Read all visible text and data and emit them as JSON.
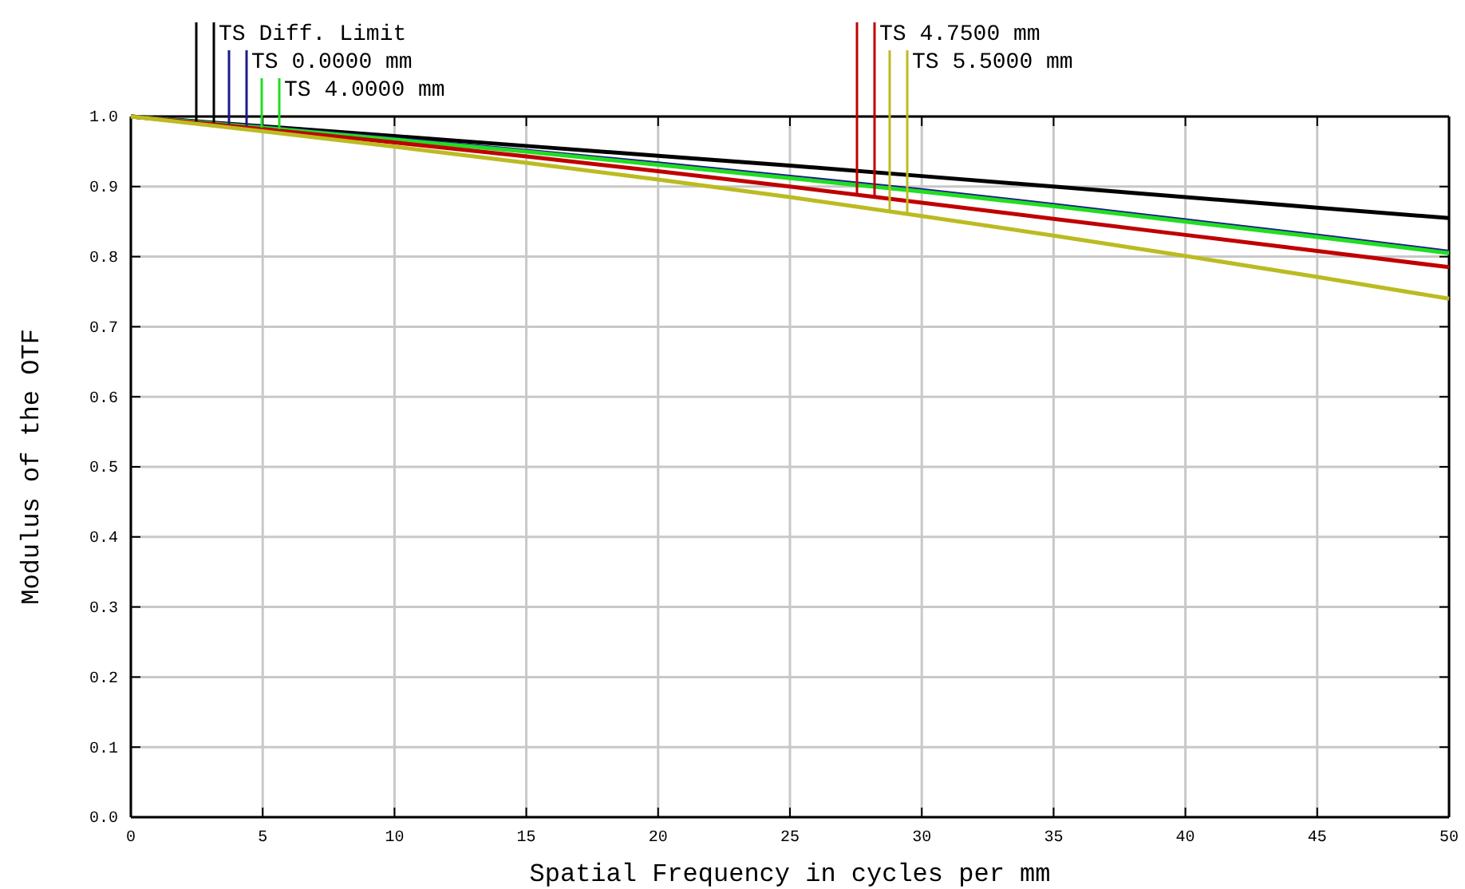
{
  "chart_data": {
    "type": "line",
    "xlabel": "Spatial Frequency in cycles per mm",
    "ylabel": "Modulus of the OTF",
    "x": [
      0,
      5,
      10,
      15,
      20,
      25,
      30,
      35,
      40,
      45,
      50
    ],
    "xlim": [
      0,
      50
    ],
    "xticks": [
      0,
      5,
      10,
      15,
      20,
      25,
      30,
      35,
      40,
      45,
      50
    ],
    "ylim": [
      0,
      1
    ],
    "yticks": [
      {
        "value": 0,
        "label": "0.0"
      },
      {
        "value": 0.1,
        "label": "0.1"
      },
      {
        "value": 0.2,
        "label": "0.2"
      },
      {
        "value": 0.3,
        "label": "0.3"
      },
      {
        "value": 0.4,
        "label": "0.4"
      },
      {
        "value": 0.5,
        "label": "0.5"
      },
      {
        "value": 0.6,
        "label": "0.6"
      },
      {
        "value": 0.7,
        "label": "0.7"
      },
      {
        "value": 0.8,
        "label": "0.8"
      },
      {
        "value": 0.9,
        "label": "0.9"
      },
      {
        "value": 1,
        "label": "1.0"
      }
    ],
    "grid": true,
    "legend": "top",
    "marker": "none",
    "line_style": "solid",
    "series": [
      {
        "name": "TS Diff. Limit",
        "color": "#000000",
        "values": [
          1,
          0.986,
          0.972,
          0.958,
          0.944,
          0.93,
          0.915,
          0.9,
          0.885,
          0.87,
          0.855
        ]
      },
      {
        "name": "TS 0.0000 mm",
        "color": "#1a1a8c",
        "values": [
          1,
          0.985,
          0.968,
          0.951,
          0.933,
          0.914,
          0.895,
          0.874,
          0.852,
          0.83,
          0.807
        ]
      },
      {
        "name": "TS 4.0000 mm",
        "color": "#22dd22",
        "values": [
          1,
          0.984,
          0.967,
          0.95,
          0.931,
          0.912,
          0.893,
          0.872,
          0.85,
          0.828,
          0.805
        ]
      },
      {
        "name": "TS 4.7500 mm",
        "color": "#c00000",
        "values": [
          1,
          0.982,
          0.963,
          0.943,
          0.922,
          0.9,
          0.877,
          0.854,
          0.831,
          0.808,
          0.785
        ]
      },
      {
        "name": "TS 5.5000 mm",
        "color": "#bbbb22",
        "values": [
          1,
          0.979,
          0.957,
          0.934,
          0.91,
          0.885,
          0.858,
          0.83,
          0.801,
          0.771,
          0.74
        ]
      }
    ]
  }
}
